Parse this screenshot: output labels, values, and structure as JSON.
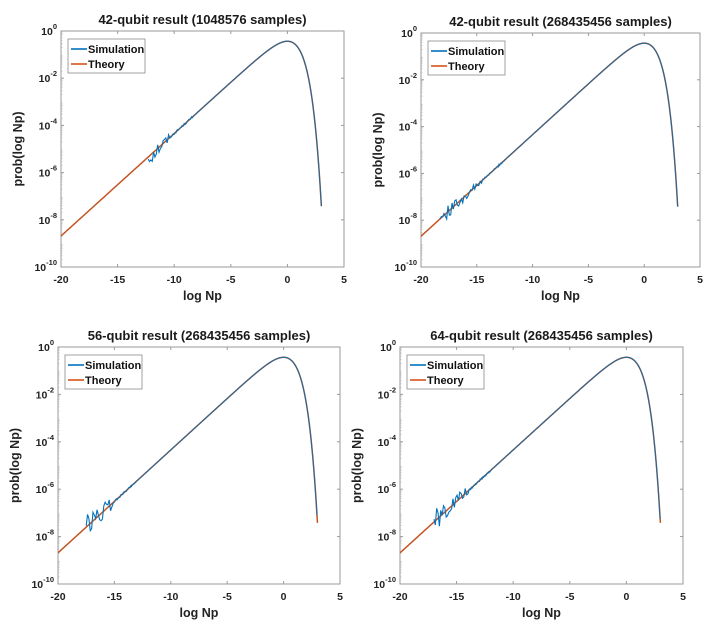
{
  "chart_data": [
    {
      "type": "line",
      "title": "42-qubit result (1048576 samples)",
      "xlabel": "log Np",
      "ylabel": "prob(log Np)",
      "xlim": [
        -20,
        5
      ],
      "ylim_log10": [
        -10,
        0
      ],
      "x_ticks": [
        "-20",
        "-15",
        "-10",
        "-5",
        "0",
        "5"
      ],
      "y_ticks": [
        {
          "base": "10",
          "exp": "0"
        },
        {
          "base": "10",
          "exp": "-2"
        },
        {
          "base": "10",
          "exp": "-4"
        },
        {
          "base": "10",
          "exp": "-6"
        },
        {
          "base": "10",
          "exp": "-8"
        },
        {
          "base": "10",
          "exp": "-10"
        }
      ],
      "legend": {
        "placement": "top-left",
        "entries": [
          "Simulation",
          "Theory"
        ]
      },
      "series": [
        {
          "name": "Theory",
          "color": "#d9541a",
          "function": "exp(x) * exp(-exp(x))",
          "x_range": [
            -20,
            3
          ]
        },
        {
          "name": "Simulation",
          "color": "#0072bd",
          "x_range": [
            -12.3,
            3
          ],
          "noise_start": -12.3,
          "noise_end": -10.3,
          "noise_log10_amp": 0.45
        }
      ]
    },
    {
      "type": "line",
      "title": "42-qubit result (268435456 samples)",
      "xlabel": "log Np",
      "ylabel": "prob(log Np)",
      "xlim": [
        -20,
        5
      ],
      "ylim_log10": [
        -10,
        0
      ],
      "x_ticks": [
        "-20",
        "-15",
        "-10",
        "-5",
        "0",
        "5"
      ],
      "y_ticks": [
        {
          "base": "10",
          "exp": "0"
        },
        {
          "base": "10",
          "exp": "-2"
        },
        {
          "base": "10",
          "exp": "-4"
        },
        {
          "base": "10",
          "exp": "-6"
        },
        {
          "base": "10",
          "exp": "-8"
        },
        {
          "base": "10",
          "exp": "-10"
        }
      ],
      "legend": {
        "placement": "top-left",
        "entries": [
          "Simulation",
          "Theory"
        ]
      },
      "series": [
        {
          "name": "Theory",
          "color": "#d9541a",
          "function": "exp(x) * exp(-exp(x))",
          "x_range": [
            -20,
            3
          ]
        },
        {
          "name": "Simulation",
          "color": "#0072bd",
          "x_range": [
            -18.3,
            3
          ],
          "noise_start": -18.3,
          "noise_end": -14.5,
          "noise_log10_amp": 0.3
        }
      ]
    },
    {
      "type": "line",
      "title": "56-qubit result (268435456 samples)",
      "xlabel": "log Np",
      "ylabel": "prob(log Np)",
      "xlim": [
        -20,
        5
      ],
      "ylim_log10": [
        -10,
        0
      ],
      "x_ticks": [
        "-20",
        "-15",
        "-10",
        "-5",
        "0",
        "5"
      ],
      "y_ticks": [
        {
          "base": "10",
          "exp": "0"
        },
        {
          "base": "10",
          "exp": "-2"
        },
        {
          "base": "10",
          "exp": "-4"
        },
        {
          "base": "10",
          "exp": "-6"
        },
        {
          "base": "10",
          "exp": "-8"
        },
        {
          "base": "10",
          "exp": "-10"
        }
      ],
      "legend": {
        "placement": "top-left",
        "entries": [
          "Simulation",
          "Theory"
        ]
      },
      "series": [
        {
          "name": "Theory",
          "color": "#d9541a",
          "function": "exp(x) * exp(-exp(x))",
          "x_range": [
            -20,
            3
          ]
        },
        {
          "name": "Simulation",
          "color": "#0072bd",
          "x_range": [
            -17.5,
            3
          ],
          "noise_start": -17.5,
          "noise_end": -15,
          "noise_log10_amp": 0.55
        }
      ]
    },
    {
      "type": "line",
      "title": "64-qubit result (268435456 samples)",
      "xlabel": "log Np",
      "ylabel": "prob(log Np)",
      "xlim": [
        -20,
        5
      ],
      "ylim_log10": [
        -10,
        0
      ],
      "x_ticks": [
        "-20",
        "-15",
        "-10",
        "-5",
        "0",
        "5"
      ],
      "y_ticks": [
        {
          "base": "10",
          "exp": "0"
        },
        {
          "base": "10",
          "exp": "-2"
        },
        {
          "base": "10",
          "exp": "-4"
        },
        {
          "base": "10",
          "exp": "-6"
        },
        {
          "base": "10",
          "exp": "-8"
        },
        {
          "base": "10",
          "exp": "-10"
        }
      ],
      "legend": {
        "placement": "top-left",
        "entries": [
          "Simulation",
          "Theory"
        ]
      },
      "series": [
        {
          "name": "Theory",
          "color": "#d9541a",
          "function": "exp(x) * exp(-exp(x))",
          "x_range": [
            -20,
            3
          ]
        },
        {
          "name": "Simulation",
          "color": "#0072bd",
          "x_range": [
            -17,
            3
          ],
          "noise_start": -17,
          "noise_end": -14,
          "noise_log10_amp": 0.5
        }
      ]
    }
  ]
}
